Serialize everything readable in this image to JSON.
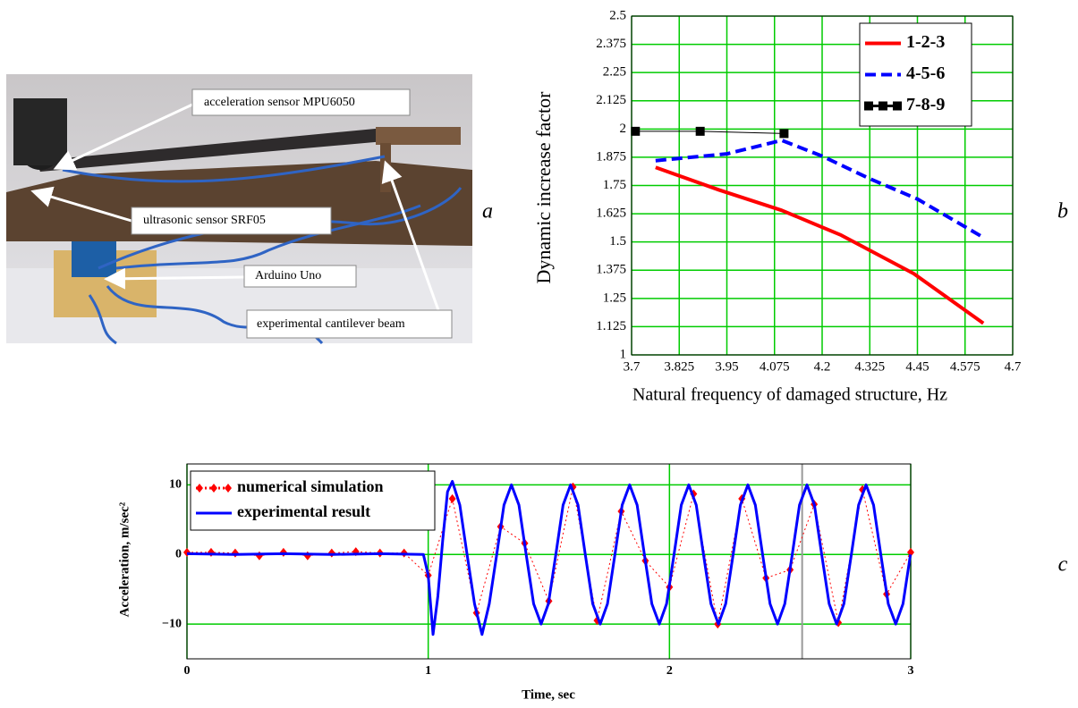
{
  "photo": {
    "labels": [
      "acceleration sensor MPU6050",
      "ultrasonic sensor SRF05",
      "Arduino Uno",
      "experimental cantilever beam"
    ]
  },
  "panel_labels": [
    "a",
    "b",
    "c"
  ],
  "chart_data": [
    {
      "type": "line",
      "y_label": "Dynamic increase factor",
      "x_label": "Natural frequency of damaged structure, Hz",
      "xlim": [
        3.7,
        4.7
      ],
      "xticks": [
        3.7,
        3.825,
        3.95,
        4.075,
        4.2,
        4.325,
        4.45,
        4.575,
        4.7
      ],
      "ylim": [
        1,
        2.5
      ],
      "yticks": [
        1,
        1.125,
        1.25,
        1.375,
        1.5,
        1.625,
        1.75,
        1.875,
        2,
        2.125,
        2.25,
        2.375,
        2.5
      ],
      "grid": true,
      "grid_color": "#00cc00",
      "legend": "upper right",
      "series": [
        {
          "name": "1-2-3",
          "color": "#ff0000",
          "style": "solid",
          "width": 4,
          "x": [
            3.763,
            3.93,
            4.094,
            4.25,
            4.44,
            4.623
          ],
          "values": [
            1.83,
            1.73,
            1.64,
            1.53,
            1.36,
            1.14
          ]
        },
        {
          "name": "4-5-6",
          "color": "#0000ff",
          "style": "dash",
          "width": 4,
          "x": [
            3.763,
            3.95,
            4.094,
            4.2,
            4.325,
            4.45,
            4.623
          ],
          "values": [
            1.86,
            1.89,
            1.95,
            1.88,
            1.78,
            1.69,
            1.52
          ]
        },
        {
          "name": "7-8-9",
          "color": "#000000",
          "style": "solid",
          "width": 1,
          "marker": "square",
          "x": [
            3.71,
            3.88,
            4.1
          ],
          "values": [
            1.99,
            1.99,
            1.98
          ]
        }
      ]
    },
    {
      "type": "line",
      "y_label": "Acceleration, m/sec²",
      "x_label": "Time, sec",
      "xlim": [
        0,
        3
      ],
      "xticks": [
        0,
        1,
        2,
        3
      ],
      "ylim": [
        -15,
        13
      ],
      "yticks": [
        {
          "value": -10,
          "label": "−10"
        },
        0,
        10
      ],
      "grid": true,
      "grid_color": "#00cc00",
      "legend": "upper left",
      "cursor_x": 2.55,
      "series": [
        {
          "name": "numerical simulation",
          "color": "#ff0000",
          "style": "dot",
          "width": 1,
          "marker": "diamond",
          "x": [
            0,
            0.1,
            0.2,
            0.3,
            0.4,
            0.5,
            0.6,
            0.7,
            0.8,
            0.9,
            1.0,
            1.1,
            1.2,
            1.3,
            1.4,
            1.5,
            1.6,
            1.7,
            1.8,
            1.9,
            2.0,
            2.1,
            2.2,
            2.3,
            2.4,
            2.5,
            2.6,
            2.7,
            2.8,
            2.9,
            3.0
          ],
          "values": [
            0.3,
            0.3,
            0.2,
            -0.2,
            0.3,
            -0.2,
            0.2,
            0.4,
            0.2,
            0.2,
            -3,
            8,
            -8.4,
            4,
            1.6,
            -6.7,
            9.7,
            -9.5,
            6.2,
            -0.9,
            -4.7,
            8.7,
            -10,
            8,
            -3.4,
            -2.2,
            7.2,
            -9.8,
            9.3,
            -5.7,
            0.3
          ]
        },
        {
          "name": "experimental result",
          "color": "#0000ff",
          "style": "solid",
          "width": 3,
          "x": [
            0,
            0.2,
            0.4,
            0.6,
            0.8,
            0.98,
            1.0,
            1.02,
            1.04,
            1.06,
            1.08,
            1.1,
            1.131,
            1.161,
            1.192,
            1.223,
            1.253,
            1.284,
            1.314,
            1.345,
            1.376,
            1.406,
            1.437,
            1.468,
            1.498,
            1.529,
            1.559,
            1.59,
            1.621,
            1.651,
            1.682,
            1.713,
            1.743,
            1.774,
            1.804,
            1.835,
            1.866,
            1.896,
            1.927,
            1.958,
            1.988,
            2.019,
            2.049,
            2.08,
            2.111,
            2.141,
            2.172,
            2.203,
            2.233,
            2.264,
            2.294,
            2.325,
            2.356,
            2.386,
            2.417,
            2.448,
            2.478,
            2.509,
            2.539,
            2.57,
            2.601,
            2.631,
            2.662,
            2.693,
            2.723,
            2.754,
            2.784,
            2.815,
            2.846,
            2.876,
            2.907,
            2.938,
            2.968,
            2.999
          ],
          "values": [
            0.1,
            0,
            0.1,
            0,
            0.1,
            0,
            -3,
            -11.5,
            -6,
            2,
            9,
            10.5,
            7.1,
            0,
            -7.1,
            -11.5,
            -7.1,
            0,
            7.1,
            10,
            7.1,
            0,
            -7.1,
            -10,
            -7.1,
            0,
            7.1,
            10,
            7.1,
            0,
            -7.1,
            -10,
            -7.1,
            0,
            7.1,
            10,
            7.1,
            0,
            -7.1,
            -10,
            -7.1,
            0,
            7.1,
            10,
            7.1,
            0,
            -7.1,
            -10,
            -7.1,
            0,
            7.1,
            10,
            7.1,
            0,
            -7.1,
            -10,
            -7.1,
            0,
            7.1,
            10,
            7.1,
            0,
            -7.1,
            -10,
            -7.1,
            0,
            7.1,
            10,
            7.1,
            0,
            -7.1,
            -10,
            -7.1,
            0
          ]
        }
      ]
    }
  ]
}
